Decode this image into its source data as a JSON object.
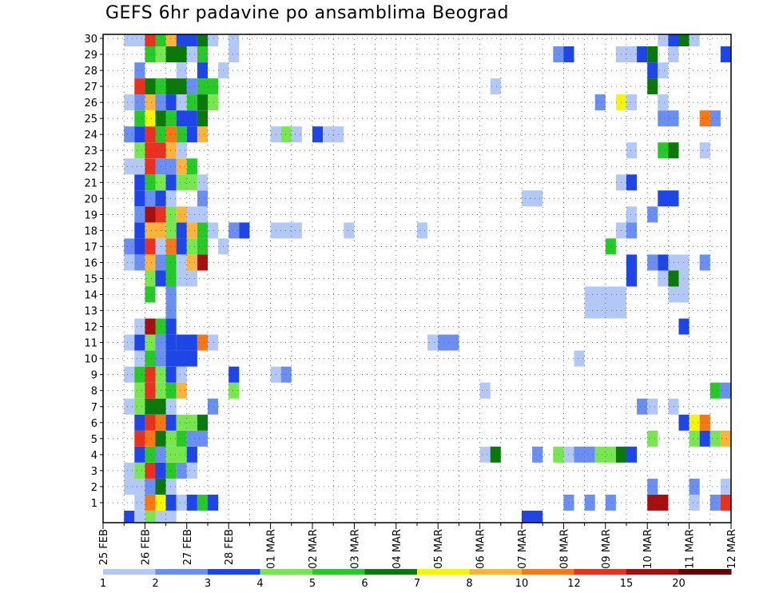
{
  "chart_data": {
    "type": "heatmap",
    "title": "GEFS 6hr padavine po ansamblima Beograd",
    "xlabel": "",
    "ylabel": "",
    "members": [
      1,
      2,
      3,
      4,
      5,
      6,
      7,
      8,
      9,
      10,
      11,
      12,
      13,
      14,
      15,
      16,
      17,
      18,
      19,
      20,
      21,
      22,
      23,
      24,
      25,
      26,
      27,
      28,
      29,
      30
    ],
    "x_ticks": [
      "25 FEB",
      "26 FEB",
      "27 FEB",
      "28 FEB",
      "01 MAR",
      "02 MAR",
      "03 MAR",
      "04 MAR",
      "05 MAR",
      "06 MAR",
      "07 MAR",
      "08 MAR",
      "09 MAR",
      "10 MAR",
      "11 MAR",
      "12 MAR"
    ],
    "x_range_days": [
      0,
      15
    ],
    "y_range": [
      0,
      30
    ],
    "step_hours": 6,
    "grid": true,
    "legend": {
      "placement": "bottom",
      "boundaries": [
        "1",
        "2",
        "3",
        "4",
        "5",
        "6",
        "7",
        "8",
        "10",
        "12",
        "15",
        "20"
      ],
      "colors": [
        "#b4c8f5",
        "#6a8ff0",
        "#1e46e6",
        "#78e650",
        "#28c828",
        "#0a780a",
        "#f5f50a",
        "#fab43c",
        "#f57814",
        "#e6321e",
        "#a50f0f",
        "#640000"
      ]
    },
    "cells": [
      [
        1,
        0.75,
        0.25,
        1
      ],
      [
        1,
        1.0,
        0.25,
        9
      ],
      [
        1,
        1.25,
        0.25,
        7
      ],
      [
        1,
        1.5,
        0.25,
        3
      ],
      [
        1,
        1.75,
        0.25,
        1
      ],
      [
        1,
        2.0,
        0.25,
        3
      ],
      [
        1,
        2.25,
        0.25,
        5
      ],
      [
        1,
        2.5,
        0.25,
        3
      ],
      [
        1,
        11.0,
        0.25,
        2
      ],
      [
        1,
        11.5,
        0.25,
        2
      ],
      [
        1,
        12.0,
        0.25,
        2
      ],
      [
        1,
        13.0,
        0.5,
        11
      ],
      [
        1,
        14.0,
        0.25,
        1
      ],
      [
        1,
        14.5,
        0.25,
        2
      ],
      [
        1,
        14.75,
        0.25,
        10
      ],
      [
        2,
        0.5,
        0.5,
        1
      ],
      [
        2,
        1.0,
        0.25,
        2
      ],
      [
        2,
        1.25,
        0.25,
        6
      ],
      [
        2,
        1.5,
        0.25,
        1
      ],
      [
        2,
        13.0,
        0.25,
        2
      ],
      [
        2,
        14.0,
        0.25,
        2
      ],
      [
        2,
        14.75,
        0.25,
        1
      ],
      [
        3,
        0.5,
        0.25,
        1
      ],
      [
        3,
        0.75,
        0.25,
        4
      ],
      [
        3,
        1.0,
        0.25,
        10
      ],
      [
        3,
        1.25,
        0.25,
        3
      ],
      [
        3,
        1.5,
        0.25,
        5
      ],
      [
        3,
        1.75,
        0.25,
        2
      ],
      [
        3,
        2.0,
        0.25,
        1
      ],
      [
        4,
        0.75,
        0.25,
        3
      ],
      [
        4,
        1.0,
        0.25,
        5
      ],
      [
        4,
        1.25,
        0.25,
        2
      ],
      [
        4,
        1.5,
        0.5,
        4
      ],
      [
        4,
        1.75,
        0.25,
        4
      ],
      [
        4,
        2.0,
        0.25,
        3
      ],
      [
        4,
        9.0,
        0.25,
        1
      ],
      [
        4,
        9.25,
        0.25,
        6
      ],
      [
        4,
        10.25,
        0.25,
        2
      ],
      [
        4,
        10.75,
        0.25,
        4
      ],
      [
        4,
        11.0,
        0.25,
        1
      ],
      [
        4,
        11.25,
        0.5,
        2
      ],
      [
        4,
        11.75,
        0.5,
        4
      ],
      [
        4,
        12.25,
        0.25,
        6
      ],
      [
        4,
        12.5,
        0.25,
        3
      ],
      [
        5,
        0.75,
        0.25,
        10
      ],
      [
        5,
        1.0,
        0.25,
        9
      ],
      [
        5,
        1.25,
        0.25,
        6
      ],
      [
        5,
        1.5,
        0.25,
        4
      ],
      [
        5,
        1.75,
        0.25,
        5
      ],
      [
        5,
        2.0,
        0.5,
        2
      ],
      [
        5,
        13.0,
        0.25,
        4
      ],
      [
        5,
        14.0,
        0.25,
        4
      ],
      [
        5,
        14.25,
        0.25,
        3
      ],
      [
        5,
        14.5,
        0.25,
        4
      ],
      [
        5,
        14.75,
        0.25,
        8
      ],
      [
        6,
        0.75,
        0.25,
        3
      ],
      [
        6,
        1.0,
        0.25,
        10
      ],
      [
        6,
        1.25,
        0.25,
        9
      ],
      [
        6,
        1.5,
        0.25,
        3
      ],
      [
        6,
        1.75,
        0.5,
        4
      ],
      [
        6,
        2.25,
        0.25,
        6
      ],
      [
        6,
        13.75,
        0.25,
        3
      ],
      [
        6,
        14.0,
        0.25,
        7
      ],
      [
        6,
        14.25,
        0.25,
        9
      ],
      [
        7,
        0.5,
        0.25,
        1
      ],
      [
        7,
        0.75,
        0.25,
        4
      ],
      [
        7,
        1.0,
        0.5,
        6
      ],
      [
        7,
        1.5,
        0.25,
        1
      ],
      [
        7,
        2.5,
        0.25,
        2
      ],
      [
        7,
        12.75,
        0.25,
        2
      ],
      [
        7,
        13.0,
        0.25,
        1
      ],
      [
        7,
        13.5,
        0.25,
        1
      ],
      [
        8,
        0.75,
        0.25,
        4
      ],
      [
        8,
        1.0,
        0.25,
        10
      ],
      [
        8,
        1.25,
        0.25,
        4
      ],
      [
        8,
        1.5,
        0.25,
        5
      ],
      [
        8,
        1.75,
        0.25,
        8
      ],
      [
        8,
        3.0,
        0.25,
        4
      ],
      [
        8,
        9.0,
        0.25,
        1
      ],
      [
        8,
        14.5,
        0.25,
        5
      ],
      [
        8,
        14.75,
        0.25,
        2
      ],
      [
        9,
        0.5,
        0.25,
        1
      ],
      [
        9,
        0.75,
        0.25,
        5
      ],
      [
        9,
        1.0,
        0.25,
        10
      ],
      [
        9,
        1.25,
        0.25,
        4
      ],
      [
        9,
        1.5,
        0.25,
        3
      ],
      [
        9,
        1.75,
        0.25,
        1
      ],
      [
        9,
        3.0,
        0.25,
        3
      ],
      [
        9,
        4.0,
        0.25,
        1
      ],
      [
        9,
        4.25,
        0.25,
        2
      ],
      [
        10,
        0.75,
        0.25,
        1
      ],
      [
        10,
        1.0,
        0.25,
        5
      ],
      [
        10,
        1.25,
        0.25,
        2
      ],
      [
        10,
        1.5,
        0.75,
        3
      ],
      [
        10,
        11.25,
        0.25,
        1
      ],
      [
        11,
        0.5,
        0.25,
        1
      ],
      [
        11,
        0.75,
        0.25,
        3
      ],
      [
        11,
        1.0,
        0.25,
        4
      ],
      [
        11,
        1.25,
        0.25,
        2
      ],
      [
        11,
        1.5,
        0.25,
        3
      ],
      [
        11,
        1.75,
        0.5,
        3
      ],
      [
        11,
        2.25,
        0.25,
        9
      ],
      [
        11,
        2.5,
        0.25,
        1
      ],
      [
        11,
        7.75,
        0.25,
        1
      ],
      [
        11,
        8.0,
        0.5,
        2
      ],
      [
        12,
        0.75,
        0.25,
        1
      ],
      [
        12,
        1.0,
        0.25,
        11
      ],
      [
        12,
        1.25,
        0.25,
        5
      ],
      [
        12,
        1.5,
        0.25,
        3
      ],
      [
        12,
        13.75,
        0.25,
        3
      ],
      [
        13,
        1.5,
        0.25,
        2
      ],
      [
        13,
        11.5,
        1.0,
        1
      ],
      [
        14,
        1.0,
        0.25,
        5
      ],
      [
        14,
        1.5,
        0.25,
        2
      ],
      [
        14,
        11.5,
        1.0,
        1
      ],
      [
        14,
        13.5,
        0.5,
        1
      ],
      [
        15,
        1.0,
        0.25,
        4
      ],
      [
        15,
        1.25,
        0.25,
        3
      ],
      [
        15,
        1.5,
        0.25,
        5
      ],
      [
        15,
        1.75,
        0.5,
        1
      ],
      [
        15,
        12.5,
        0.25,
        3
      ],
      [
        15,
        13.25,
        0.25,
        1
      ],
      [
        15,
        13.5,
        0.25,
        6
      ],
      [
        15,
        13.75,
        0.25,
        1
      ],
      [
        16,
        0.5,
        0.25,
        1
      ],
      [
        16,
        0.75,
        0.25,
        2
      ],
      [
        16,
        1.0,
        0.25,
        8
      ],
      [
        16,
        1.25,
        0.25,
        2
      ],
      [
        16,
        1.5,
        0.25,
        5
      ],
      [
        16,
        1.75,
        0.25,
        1
      ],
      [
        16,
        2.0,
        0.25,
        8
      ],
      [
        16,
        2.25,
        0.25,
        11
      ],
      [
        16,
        12.5,
        0.25,
        3
      ],
      [
        16,
        13.0,
        0.25,
        2
      ],
      [
        16,
        13.25,
        0.25,
        3
      ],
      [
        16,
        13.5,
        0.5,
        1
      ],
      [
        16,
        14.25,
        0.25,
        2
      ],
      [
        17,
        0.5,
        0.25,
        2
      ],
      [
        17,
        0.75,
        0.25,
        3
      ],
      [
        17,
        1.0,
        0.25,
        10
      ],
      [
        17,
        1.25,
        0.25,
        1
      ],
      [
        17,
        1.5,
        0.25,
        9
      ],
      [
        17,
        1.75,
        0.25,
        3
      ],
      [
        17,
        2.0,
        0.25,
        4
      ],
      [
        17,
        2.25,
        0.25,
        5
      ],
      [
        17,
        2.75,
        0.25,
        1
      ],
      [
        17,
        12.0,
        0.25,
        5
      ],
      [
        18,
        0.75,
        0.25,
        3
      ],
      [
        18,
        1.0,
        0.5,
        8
      ],
      [
        18,
        1.5,
        0.25,
        4
      ],
      [
        18,
        1.75,
        0.25,
        3
      ],
      [
        18,
        2.0,
        0.25,
        8
      ],
      [
        18,
        2.25,
        0.25,
        5
      ],
      [
        18,
        2.5,
        0.25,
        1
      ],
      [
        18,
        3.0,
        0.25,
        2
      ],
      [
        18,
        3.25,
        0.25,
        3
      ],
      [
        18,
        4.0,
        0.75,
        1
      ],
      [
        18,
        5.75,
        0.25,
        1
      ],
      [
        18,
        7.5,
        0.25,
        1
      ],
      [
        18,
        12.25,
        0.25,
        1
      ],
      [
        18,
        12.5,
        0.25,
        2
      ],
      [
        19,
        0.75,
        0.25,
        2
      ],
      [
        19,
        1.0,
        0.25,
        11
      ],
      [
        19,
        1.25,
        0.25,
        10
      ],
      [
        19,
        1.5,
        0.25,
        4
      ],
      [
        19,
        1.75,
        0.25,
        8
      ],
      [
        19,
        2.0,
        0.25,
        1
      ],
      [
        19,
        2.25,
        0.25,
        1
      ],
      [
        19,
        12.5,
        0.25,
        1
      ],
      [
        19,
        13.0,
        0.25,
        2
      ],
      [
        20,
        0.75,
        0.25,
        3
      ],
      [
        20,
        1.0,
        0.25,
        2
      ],
      [
        20,
        1.25,
        0.25,
        3
      ],
      [
        20,
        1.5,
        0.25,
        1
      ],
      [
        20,
        2.25,
        0.25,
        2
      ],
      [
        20,
        10.0,
        0.5,
        1
      ],
      [
        20,
        13.25,
        0.5,
        3
      ],
      [
        21,
        0.75,
        0.25,
        3
      ],
      [
        21,
        1.0,
        0.25,
        5
      ],
      [
        21,
        1.25,
        0.25,
        4
      ],
      [
        21,
        1.5,
        0.25,
        3
      ],
      [
        21,
        1.75,
        0.5,
        4
      ],
      [
        21,
        2.25,
        0.25,
        1
      ],
      [
        21,
        12.25,
        0.25,
        1
      ],
      [
        21,
        12.5,
        0.25,
        3
      ],
      [
        22,
        0.5,
        0.5,
        1
      ],
      [
        22,
        1.0,
        0.25,
        10
      ],
      [
        22,
        1.25,
        0.5,
        2
      ],
      [
        22,
        1.75,
        0.25,
        8
      ],
      [
        22,
        2.0,
        0.25,
        5
      ],
      [
        23,
        0.75,
        0.25,
        4
      ],
      [
        23,
        1.0,
        0.5,
        10
      ],
      [
        23,
        1.5,
        0.25,
        8
      ],
      [
        23,
        1.75,
        0.25,
        1
      ],
      [
        23,
        12.5,
        0.25,
        1
      ],
      [
        23,
        13.25,
        0.25,
        5
      ],
      [
        23,
        13.5,
        0.25,
        6
      ],
      [
        23,
        14.25,
        0.25,
        1
      ],
      [
        24,
        0.5,
        0.25,
        2
      ],
      [
        24,
        0.75,
        0.25,
        3
      ],
      [
        24,
        1.0,
        0.25,
        10
      ],
      [
        24,
        1.25,
        0.25,
        5
      ],
      [
        24,
        1.5,
        0.25,
        9
      ],
      [
        24,
        1.75,
        0.25,
        5
      ],
      [
        24,
        2.0,
        0.25,
        3
      ],
      [
        24,
        2.25,
        0.25,
        8
      ],
      [
        24,
        4.0,
        0.25,
        1
      ],
      [
        24,
        4.25,
        0.25,
        4
      ],
      [
        24,
        4.5,
        0.25,
        1
      ],
      [
        24,
        5.0,
        0.25,
        3
      ],
      [
        24,
        5.25,
        0.5,
        1
      ],
      [
        25,
        0.75,
        0.25,
        5
      ],
      [
        25,
        1.0,
        0.25,
        7
      ],
      [
        25,
        1.25,
        0.25,
        6
      ],
      [
        25,
        1.5,
        0.25,
        5
      ],
      [
        25,
        1.75,
        0.5,
        3
      ],
      [
        25,
        2.25,
        0.25,
        6
      ],
      [
        25,
        13.25,
        0.5,
        2
      ],
      [
        25,
        14.25,
        0.25,
        9
      ],
      [
        25,
        14.5,
        0.25,
        2
      ],
      [
        26,
        0.5,
        0.25,
        1
      ],
      [
        26,
        0.75,
        0.25,
        2
      ],
      [
        26,
        1.0,
        0.25,
        8
      ],
      [
        26,
        1.25,
        0.25,
        2
      ],
      [
        26,
        1.5,
        0.25,
        3
      ],
      [
        26,
        1.75,
        0.25,
        1
      ],
      [
        26,
        2.0,
        0.25,
        5
      ],
      [
        26,
        2.25,
        0.25,
        6
      ],
      [
        26,
        2.5,
        0.25,
        4
      ],
      [
        26,
        11.75,
        0.25,
        2
      ],
      [
        26,
        12.25,
        0.25,
        7
      ],
      [
        26,
        12.5,
        0.25,
        1
      ],
      [
        26,
        13.25,
        0.25,
        1
      ],
      [
        27,
        0.75,
        0.25,
        10
      ],
      [
        27,
        1.0,
        0.25,
        6
      ],
      [
        27,
        1.25,
        0.25,
        5
      ],
      [
        27,
        1.5,
        0.5,
        6
      ],
      [
        27,
        2.0,
        0.25,
        2
      ],
      [
        27,
        2.25,
        0.5,
        5
      ],
      [
        27,
        9.25,
        0.25,
        1
      ],
      [
        27,
        13.0,
        0.25,
        6
      ],
      [
        28,
        0.75,
        0.25,
        2
      ],
      [
        28,
        1.75,
        0.25,
        1
      ],
      [
        28,
        2.25,
        0.25,
        3
      ],
      [
        28,
        2.75,
        0.25,
        1
      ],
      [
        28,
        13.0,
        0.25,
        3
      ],
      [
        28,
        13.25,
        0.25,
        1
      ],
      [
        29,
        1.0,
        0.25,
        5
      ],
      [
        29,
        1.25,
        0.25,
        4
      ],
      [
        29,
        1.5,
        0.5,
        6
      ],
      [
        29,
        2.0,
        0.25,
        1
      ],
      [
        29,
        2.25,
        0.25,
        5
      ],
      [
        29,
        3.0,
        0.25,
        1
      ],
      [
        29,
        10.75,
        0.25,
        2
      ],
      [
        29,
        11.0,
        0.25,
        3
      ],
      [
        29,
        12.25,
        0.5,
        1
      ],
      [
        29,
        12.75,
        0.25,
        3
      ],
      [
        29,
        13.0,
        0.25,
        6
      ],
      [
        29,
        13.5,
        0.25,
        1
      ],
      [
        29,
        14.75,
        0.25,
        3
      ],
      [
        30,
        0.5,
        0.5,
        1
      ],
      [
        30,
        1.0,
        0.25,
        10
      ],
      [
        30,
        1.25,
        0.25,
        5
      ],
      [
        30,
        1.5,
        0.25,
        8
      ],
      [
        30,
        1.75,
        0.5,
        3
      ],
      [
        30,
        2.25,
        0.25,
        6
      ],
      [
        30,
        2.5,
        0.25,
        1
      ],
      [
        30,
        3.0,
        0.25,
        1
      ],
      [
        30,
        13.25,
        0.25,
        1
      ],
      [
        30,
        13.5,
        0.25,
        3
      ],
      [
        30,
        13.75,
        0.25,
        6
      ],
      [
        30,
        14.0,
        0.25,
        1
      ],
      [
        0,
        0.5,
        0.25,
        3
      ],
      [
        0,
        0.75,
        0.25,
        1
      ],
      [
        0,
        1.0,
        0.25,
        4
      ],
      [
        0,
        1.25,
        0.5,
        1
      ],
      [
        0,
        10.0,
        0.5,
        3
      ]
    ]
  }
}
